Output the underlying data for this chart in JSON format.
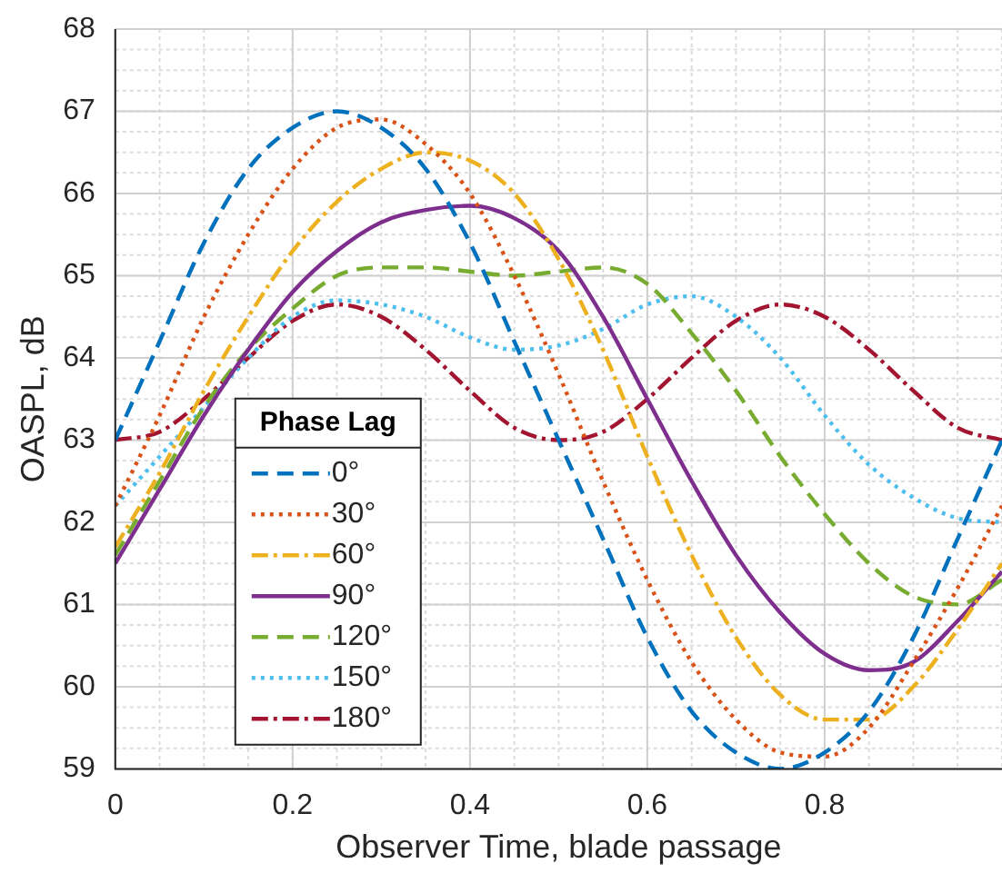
{
  "chart_data": {
    "type": "line",
    "xlabel": "Observer Time, blade passage",
    "ylabel": "OASPL, dB",
    "legend_title": "Phase Lag",
    "x": [
      0,
      0.05,
      0.1,
      0.15,
      0.2,
      0.25,
      0.3,
      0.35,
      0.4,
      0.45,
      0.5,
      0.55,
      0.6,
      0.65,
      0.7,
      0.75,
      0.8,
      0.85,
      0.9,
      0.95,
      1
    ],
    "xlim": [
      0,
      1
    ],
    "xticks": [
      0,
      0.2,
      0.4,
      0.6,
      0.8
    ],
    "ylim": [
      59,
      68
    ],
    "yticks": [
      59,
      60,
      61,
      62,
      63,
      64,
      65,
      66,
      67,
      68
    ],
    "grid": true,
    "legend": "left",
    "marker": "none",
    "series": [
      {
        "name": "0°",
        "color": "#0072bd",
        "line_style": "dashed",
        "values": [
          63.0,
          64.2,
          65.4,
          66.3,
          66.8,
          67.0,
          66.8,
          66.3,
          65.4,
          64.2,
          63.0,
          61.8,
          60.6,
          59.7,
          59.2,
          59.0,
          59.2,
          59.7,
          60.6,
          61.8,
          63.0
        ]
      },
      {
        "name": "30°",
        "color": "#d95319",
        "line_style": "dotted",
        "values": [
          62.2,
          63.3,
          64.5,
          65.5,
          66.3,
          66.8,
          66.9,
          66.6,
          66.0,
          65.0,
          63.8,
          62.5,
          61.3,
          60.3,
          59.6,
          59.2,
          59.15,
          59.5,
          60.3,
          61.2,
          62.2
        ]
      },
      {
        "name": "60°",
        "color": "#edb120",
        "line_style": "dashdot",
        "values": [
          61.7,
          62.6,
          63.6,
          64.5,
          65.3,
          65.9,
          66.3,
          66.5,
          66.4,
          66.0,
          65.2,
          64.1,
          62.8,
          61.6,
          60.6,
          59.9,
          59.6,
          59.6,
          60.0,
          60.7,
          61.5
        ]
      },
      {
        "name": "90°",
        "color": "#7e2f8e",
        "line_style": "solid",
        "values": [
          61.5,
          62.4,
          63.3,
          64.1,
          64.8,
          65.3,
          65.65,
          65.8,
          65.85,
          65.7,
          65.3,
          64.5,
          63.5,
          62.5,
          61.6,
          60.9,
          60.4,
          60.2,
          60.3,
          60.8,
          61.4
        ]
      },
      {
        "name": "120°",
        "color": "#77ac30",
        "line_style": "dashed",
        "values": [
          61.6,
          62.5,
          63.4,
          64.1,
          64.6,
          65.0,
          65.1,
          65.1,
          65.05,
          65.0,
          65.05,
          65.1,
          64.9,
          64.3,
          63.6,
          62.8,
          62.1,
          61.5,
          61.1,
          61.0,
          61.3
        ]
      },
      {
        "name": "150°",
        "color": "#4dbeee",
        "line_style": "dotted",
        "values": [
          62.2,
          62.8,
          63.4,
          64.0,
          64.5,
          64.7,
          64.65,
          64.5,
          64.25,
          64.1,
          64.15,
          64.35,
          64.65,
          64.75,
          64.5,
          64.0,
          63.3,
          62.7,
          62.3,
          62.05,
          62.0
        ]
      },
      {
        "name": "180°",
        "color": "#a2142f",
        "line_style": "dashdot",
        "values": [
          63.0,
          63.1,
          63.5,
          64.0,
          64.45,
          64.65,
          64.5,
          64.1,
          63.6,
          63.15,
          63.0,
          63.1,
          63.5,
          64.0,
          64.45,
          64.65,
          64.5,
          64.1,
          63.6,
          63.15,
          63.0
        ]
      }
    ]
  }
}
